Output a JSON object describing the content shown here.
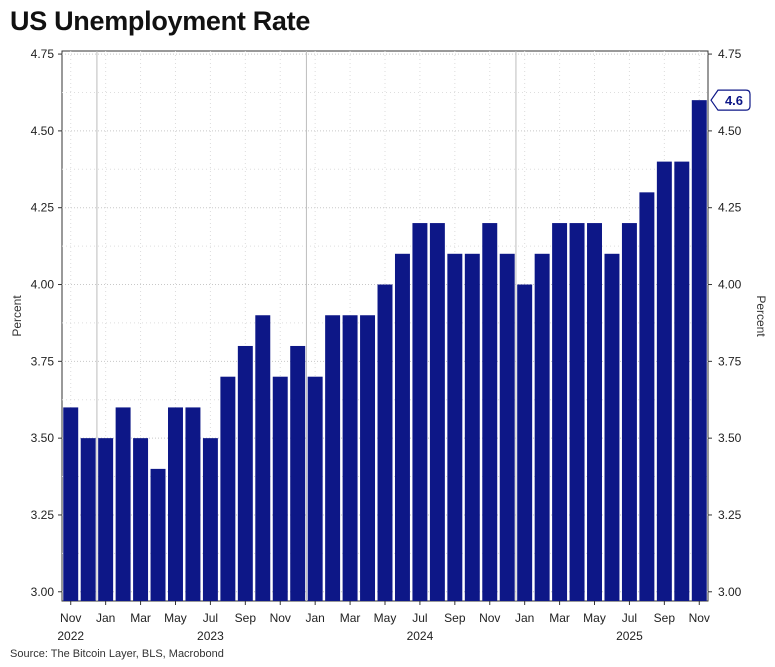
{
  "title": "US Unemployment Rate",
  "source": "Source: The Bitcoin Layer, BLS, Macrobond",
  "chart_data": {
    "type": "bar",
    "title": "US Unemployment Rate",
    "ylabel_left": "Percent",
    "ylabel_right": "Percent",
    "ylim": [
      2.97,
      4.76
    ],
    "yticks": [
      "3.00",
      "3.25",
      "3.50",
      "3.75",
      "4.00",
      "4.25",
      "4.50",
      "4.75"
    ],
    "grid": true,
    "bar_color": "#0d1787",
    "callout_color": "#0d1787",
    "categories": [
      "2022-11",
      "2022-12",
      "2023-01",
      "2023-02",
      "2023-03",
      "2023-04",
      "2023-05",
      "2023-06",
      "2023-07",
      "2023-08",
      "2023-09",
      "2023-10",
      "2023-11",
      "2023-12",
      "2024-01",
      "2024-02",
      "2024-03",
      "2024-04",
      "2024-05",
      "2024-06",
      "2024-07",
      "2024-08",
      "2024-09",
      "2024-10",
      "2024-11",
      "2024-12",
      "2025-01",
      "2025-02",
      "2025-03",
      "2025-04",
      "2025-05",
      "2025-06",
      "2025-07",
      "2025-08",
      "2025-09",
      "2025-10",
      "2025-11"
    ],
    "values": [
      3.6,
      3.5,
      3.5,
      3.6,
      3.5,
      3.4,
      3.6,
      3.6,
      3.5,
      3.7,
      3.8,
      3.9,
      3.7,
      3.8,
      3.7,
      3.9,
      3.9,
      3.9,
      4.0,
      4.1,
      4.2,
      4.2,
      4.1,
      4.1,
      4.2,
      4.1,
      4.0,
      4.1,
      4.2,
      4.2,
      4.2,
      4.1,
      4.2,
      4.3,
      4.4,
      4.4,
      4.6
    ],
    "x_tick_labels": [
      {
        "month": "Nov",
        "year": "2022",
        "index": 0
      },
      {
        "month": "Jan",
        "year": "",
        "index": 2
      },
      {
        "month": "Mar",
        "year": "",
        "index": 4
      },
      {
        "month": "May",
        "year": "",
        "index": 6
      },
      {
        "month": "Jul",
        "year": "2023",
        "index": 8
      },
      {
        "month": "Sep",
        "year": "",
        "index": 10
      },
      {
        "month": "Nov",
        "year": "",
        "index": 12
      },
      {
        "month": "Jan",
        "year": "",
        "index": 14
      },
      {
        "month": "Mar",
        "year": "",
        "index": 16
      },
      {
        "month": "May",
        "year": "",
        "index": 18
      },
      {
        "month": "Jul",
        "year": "2024",
        "index": 20
      },
      {
        "month": "Sep",
        "year": "",
        "index": 22
      },
      {
        "month": "Nov",
        "year": "",
        "index": 24
      },
      {
        "month": "Jan",
        "year": "",
        "index": 26
      },
      {
        "month": "Mar",
        "year": "",
        "index": 28
      },
      {
        "month": "May",
        "year": "",
        "index": 30
      },
      {
        "month": "Jul",
        "year": "2025",
        "index": 32
      },
      {
        "month": "Sep",
        "year": "",
        "index": 34
      },
      {
        "month": "Nov",
        "year": "",
        "index": 36
      }
    ],
    "year_boundaries": [
      2,
      14,
      26
    ],
    "last_value_label": "4.6"
  }
}
